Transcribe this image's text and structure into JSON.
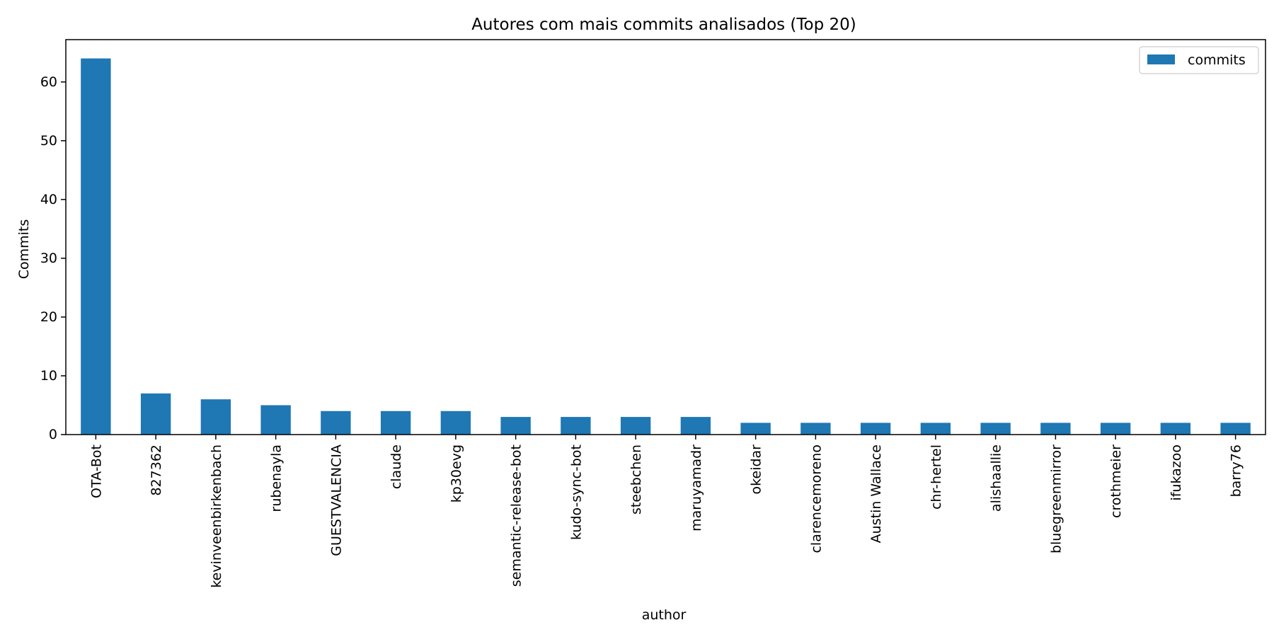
{
  "chart_data": {
    "type": "bar",
    "title": "Autores com mais commits analisados (Top 20)",
    "xlabel": "author",
    "ylabel": "Commits",
    "categories": [
      "OTA-Bot",
      "827362",
      "kevinveenbirkenbach",
      "rubenayla",
      "GUESTVALENCIA",
      "claude",
      "kp30evg",
      "semantic-release-bot",
      "kudo-sync-bot",
      "steebchen",
      "maruyamadr",
      "okeidar",
      "clarencemoreno",
      "Austin Wallace",
      "chr-hertel",
      "alishaallie",
      "bluegreenmirror",
      "crothmeier",
      "ifukazoo",
      "barry76"
    ],
    "series": [
      {
        "name": "commits",
        "values": [
          64,
          7,
          6,
          5,
          4,
          4,
          4,
          3,
          3,
          3,
          3,
          2,
          2,
          2,
          2,
          2,
          2,
          2,
          2,
          2
        ]
      }
    ],
    "ylim": [
      0,
      67.2
    ],
    "yticks": [
      0,
      10,
      20,
      30,
      40,
      50,
      60
    ],
    "grid": false,
    "legend_position": "top-right",
    "colors": {
      "bar": "#1f77b4",
      "axis": "#000000"
    }
  }
}
